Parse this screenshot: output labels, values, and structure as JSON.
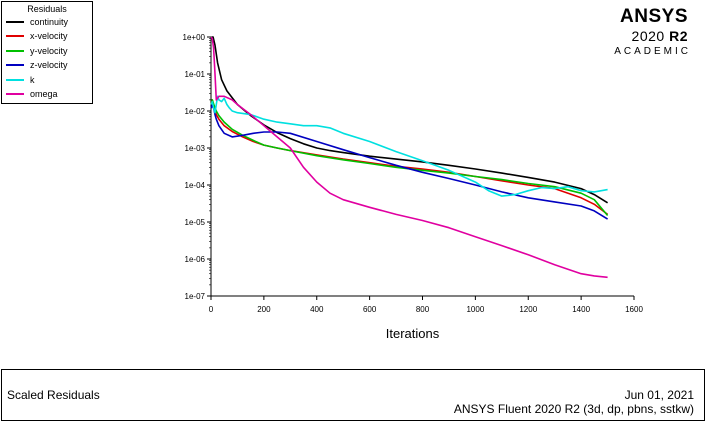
{
  "legend": {
    "title": "Residuals"
  },
  "brand": {
    "name": "ANSYS",
    "version_prefix": "2020 ",
    "version_release": "R2",
    "tier": "ACADEMIC"
  },
  "footer": {
    "title": "Scaled Residuals",
    "date": "Jun 01, 2021",
    "solver": "ANSYS Fluent 2020 R2 (3d, dp, pbns, sstkw)"
  },
  "chart_data": {
    "type": "line",
    "xlabel": "Iterations",
    "ylabel": "",
    "xlim": [
      0,
      1600
    ],
    "ylim_log10": [
      -7,
      0
    ],
    "yscale": "log",
    "xticks": [
      0,
      200,
      400,
      600,
      800,
      1000,
      1200,
      1400,
      1600
    ],
    "yticks": [
      "1e+00",
      "1e-01",
      "1e-02",
      "1e-03",
      "1e-04",
      "1e-05",
      "1e-06",
      "1e-07"
    ],
    "grid": false,
    "legend_position": "top-left",
    "series": [
      {
        "name": "continuity",
        "color": "#000000",
        "x": [
          1,
          8,
          15,
          25,
          40,
          60,
          100,
          150,
          200,
          250,
          300,
          350,
          400,
          450,
          500,
          600,
          700,
          800,
          900,
          1000,
          1100,
          1200,
          1300,
          1400,
          1450,
          1500
        ],
        "y": [
          1.0,
          1.0,
          0.6,
          0.2,
          0.07,
          0.035,
          0.015,
          0.0075,
          0.0042,
          0.0026,
          0.0018,
          0.0013,
          0.001,
          0.00085,
          0.00075,
          0.0006,
          0.0005,
          0.00042,
          0.00034,
          0.00027,
          0.00021,
          0.00016,
          0.00012,
          8e-05,
          5.5e-05,
          3.3e-05
        ]
      },
      {
        "name": "x-velocity",
        "color": "#e00000",
        "x": [
          1,
          5,
          12,
          20,
          30,
          50,
          80,
          120,
          160,
          200,
          250,
          300,
          400,
          500,
          600,
          700,
          800,
          900,
          1000,
          1100,
          1200,
          1300,
          1400,
          1450,
          1500
        ],
        "y": [
          0.015,
          0.02,
          0.012,
          0.008,
          0.006,
          0.004,
          0.0028,
          0.002,
          0.0015,
          0.0012,
          0.001,
          0.00085,
          0.00065,
          0.0005,
          0.0004,
          0.00032,
          0.00027,
          0.00022,
          0.00017,
          0.00013,
          0.0001,
          8e-05,
          4.5e-05,
          3e-05,
          1.6e-05
        ]
      },
      {
        "name": "y-velocity",
        "color": "#00c000",
        "x": [
          1,
          5,
          12,
          20,
          30,
          50,
          80,
          120,
          160,
          200,
          250,
          300,
          400,
          500,
          600,
          700,
          800,
          900,
          1000,
          1100,
          1200,
          1300,
          1400,
          1450,
          1500
        ],
        "y": [
          0.015,
          0.02,
          0.014,
          0.01,
          0.0075,
          0.005,
          0.0032,
          0.0022,
          0.0016,
          0.0012,
          0.001,
          0.00085,
          0.00062,
          0.00048,
          0.00038,
          0.0003,
          0.00025,
          0.00021,
          0.00017,
          0.00014,
          0.00011,
          9e-05,
          6e-05,
          4e-05,
          1.5e-05
        ]
      },
      {
        "name": "z-velocity",
        "color": "#0000c0",
        "x": [
          1,
          5,
          10,
          15,
          20,
          30,
          50,
          80,
          120,
          160,
          200,
          250,
          300,
          400,
          500,
          600,
          700,
          800,
          900,
          1000,
          1100,
          1200,
          1300,
          1400,
          1450,
          1500
        ],
        "y": [
          0.012,
          0.015,
          0.012,
          0.008,
          0.006,
          0.004,
          0.0025,
          0.002,
          0.0022,
          0.0025,
          0.0027,
          0.0027,
          0.0025,
          0.0015,
          0.0009,
          0.00055,
          0.00034,
          0.00022,
          0.00015,
          0.0001,
          6.5e-05,
          4.5e-05,
          3.5e-05,
          2.7e-05,
          2e-05,
          1.2e-05
        ]
      },
      {
        "name": "k",
        "color": "#00e0e0",
        "x": [
          1,
          5,
          10,
          15,
          20,
          25,
          30,
          40,
          50,
          60,
          70,
          80,
          100,
          150,
          200,
          250,
          300,
          350,
          400,
          450,
          500,
          600,
          700,
          800,
          900,
          1000,
          1050,
          1100,
          1150,
          1200,
          1250,
          1300,
          1350,
          1400,
          1450,
          1500
        ],
        "y": [
          0.015,
          0.018,
          0.012,
          0.009,
          0.015,
          0.025,
          0.02,
          0.018,
          0.022,
          0.015,
          0.012,
          0.01,
          0.009,
          0.008,
          0.006,
          0.005,
          0.0045,
          0.004,
          0.004,
          0.0035,
          0.0025,
          0.0015,
          0.0008,
          0.00045,
          0.00025,
          0.00012,
          7e-05,
          5e-05,
          5.5e-05,
          7e-05,
          8.5e-05,
          8e-05,
          9e-05,
          7e-05,
          6.5e-05,
          7.5e-05
        ]
      },
      {
        "name": "omega",
        "color": "#e000a0",
        "x": [
          1,
          5,
          10,
          15,
          20,
          30,
          50,
          80,
          100,
          150,
          200,
          250,
          300,
          350,
          400,
          450,
          500,
          600,
          700,
          800,
          900,
          1000,
          1100,
          1200,
          1300,
          1400,
          1450,
          1500
        ],
        "y": [
          1.0,
          0.9,
          0.5,
          0.1,
          0.02,
          0.025,
          0.025,
          0.02,
          0.015,
          0.008,
          0.004,
          0.002,
          0.001,
          0.0003,
          0.00012,
          6e-05,
          4e-05,
          2.5e-05,
          1.6e-05,
          1.1e-05,
          7e-06,
          4e-06,
          2.3e-06,
          1.3e-06,
          7e-07,
          4e-07,
          3.5e-07,
          3.2e-07
        ]
      }
    ]
  }
}
